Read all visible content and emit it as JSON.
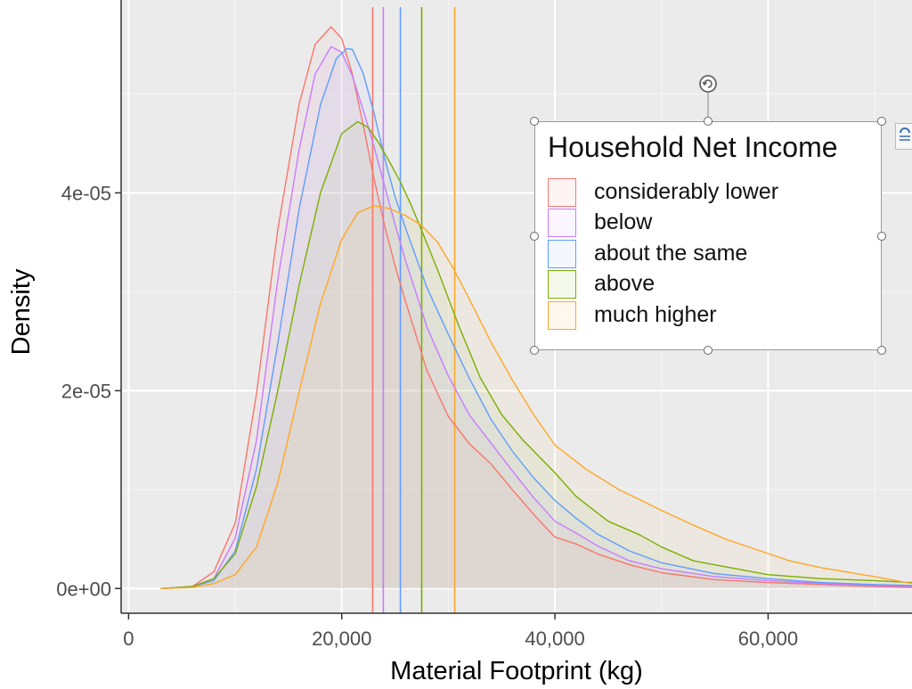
{
  "chart_data": {
    "type": "area",
    "xlabel": "Material Footprint (kg)",
    "ylabel": "Density",
    "xlim": [
      -700,
      73500
    ],
    "ylim": [
      -2.5e-06,
      5.95e-05
    ],
    "x_ticks": [
      0,
      20000,
      40000,
      60000
    ],
    "x_tick_labels": [
      "0",
      "20,000",
      "40,000",
      "60,000"
    ],
    "y_ticks": [
      0,
      2e-05,
      4e-05
    ],
    "y_tick_labels": [
      "0e+00",
      "2e-05",
      "4e-05"
    ],
    "grid": true,
    "legend_position": "top-right",
    "legend_title": "Household Net Income",
    "series": [
      {
        "name": "considerably lower",
        "color": "#F8766D",
        "mean": 22900,
        "x": [
          3000,
          6000,
          8000,
          10000,
          12000,
          14000,
          16000,
          17500,
          19000,
          20000,
          21000,
          22000,
          23000,
          24000,
          25000,
          26000,
          27000,
          28000,
          30000,
          32000,
          34000,
          36000,
          38000,
          40000,
          42000,
          44000,
          47000,
          50000,
          55000,
          60000,
          65000,
          70000,
          73500
        ],
        "y": [
          0.0,
          2e-07,
          1.7e-06,
          6.6e-06,
          1.97e-05,
          3.63e-05,
          4.9e-05,
          5.5e-05,
          5.68e-05,
          5.56e-05,
          5.2e-05,
          4.69e-05,
          4.16e-05,
          3.68e-05,
          3.26e-05,
          2.9e-05,
          2.55e-05,
          2.2e-05,
          1.74e-05,
          1.46e-05,
          1.26e-05,
          1e-05,
          7.5e-06,
          5.2e-06,
          4.5e-06,
          3.5e-06,
          2.4e-06,
          1.6e-06,
          9e-07,
          6e-07,
          4e-07,
          2e-07,
          1e-07
        ]
      },
      {
        "name": "below",
        "color": "#C77CFF",
        "mean": 23900,
        "x": [
          3000,
          6000,
          8000,
          10000,
          12000,
          14000,
          16000,
          17500,
          19000,
          20000,
          21000,
          22000,
          23000,
          24000,
          25000,
          26000,
          27000,
          28000,
          30000,
          32000,
          34000,
          36000,
          38000,
          40000,
          42000,
          44000,
          47000,
          50000,
          55000,
          60000,
          65000,
          70000,
          73500
        ],
        "y": [
          0.0,
          2e-07,
          1e-06,
          5.1e-06,
          1.5e-05,
          3.12e-05,
          4.44e-05,
          5.2e-05,
          5.48e-05,
          5.42e-05,
          5.18e-05,
          4.84e-05,
          4.48e-05,
          4.08e-05,
          3.68e-05,
          3.31e-05,
          2.98e-05,
          2.64e-05,
          2.15e-05,
          1.75e-05,
          1.47e-05,
          1.19e-05,
          9.2e-06,
          6.8e-06,
          5.6e-06,
          4.3e-06,
          2.8e-06,
          2e-06,
          1.2e-06,
          8e-07,
          5e-07,
          3e-07,
          2e-07
        ]
      },
      {
        "name": "about the same",
        "color": "#619CFF",
        "mean": 25500,
        "x": [
          3000,
          6000,
          8000,
          10000,
          12000,
          14000,
          16000,
          18000,
          19500,
          20500,
          21000,
          22000,
          23000,
          24000,
          25000,
          26000,
          27000,
          28000,
          30000,
          32000,
          34000,
          36000,
          38000,
          40000,
          42000,
          44000,
          47000,
          50000,
          55000,
          60000,
          65000,
          70000,
          73500
        ],
        "y": [
          0.0,
          2e-07,
          8e-07,
          3.8e-06,
          1.21e-05,
          2.48e-05,
          3.84e-05,
          4.89e-05,
          5.36e-05,
          5.46e-05,
          5.45e-05,
          5.21e-05,
          4.82e-05,
          4.36e-05,
          3.96e-05,
          3.64e-05,
          3.34e-05,
          3.04e-05,
          2.57e-05,
          2.12e-05,
          1.71e-05,
          1.39e-05,
          1.12e-05,
          8.9e-06,
          7.1e-06,
          5.5e-06,
          3.8e-06,
          2.6e-06,
          1.5e-06,
          1e-06,
          6e-07,
          4e-07,
          3e-07
        ]
      },
      {
        "name": "above",
        "color": "#7CAE00",
        "mean": 27500,
        "x": [
          3000,
          6000,
          8000,
          10000,
          12000,
          14000,
          16000,
          18000,
          20000,
          21500,
          22500,
          23500,
          24500,
          25500,
          26500,
          27500,
          29000,
          31000,
          33000,
          35000,
          37000,
          40000,
          42000,
          45000,
          48000,
          50000,
          53000,
          57000,
          60000,
          65000,
          70000,
          73500
        ],
        "y": [
          0.0,
          2e-07,
          1e-06,
          3.5e-06,
          1.03e-05,
          2e-05,
          3.07e-05,
          4e-05,
          4.6e-05,
          4.72e-05,
          4.66e-05,
          4.5e-05,
          4.31e-05,
          4.11e-05,
          3.88e-05,
          3.62e-05,
          3.22e-05,
          2.65e-05,
          2.13e-05,
          1.76e-05,
          1.5e-05,
          1.17e-05,
          9.3e-06,
          6.8e-06,
          5.4e-06,
          4.2e-06,
          2.8e-06,
          2e-06,
          1.4e-06,
          1e-06,
          8e-07,
          6e-07
        ]
      },
      {
        "name": "much higher",
        "color": "#FFA726",
        "mean": 30600,
        "x": [
          3000,
          6000,
          8000,
          10000,
          12000,
          14000,
          16000,
          18000,
          20000,
          21500,
          23000,
          24500,
          26000,
          27500,
          29000,
          30500,
          32000,
          34000,
          36000,
          38000,
          40000,
          43000,
          46000,
          50000,
          53000,
          56000,
          59000,
          62000,
          65000,
          70000,
          73500
        ],
        "y": [
          0.0,
          1e-07,
          5e-07,
          1.4e-06,
          4.2e-06,
          1.07e-05,
          1.99e-05,
          2.88e-05,
          3.53e-05,
          3.8e-05,
          3.87e-05,
          3.84e-05,
          3.77e-05,
          3.67e-05,
          3.5e-05,
          3.23e-05,
          2.92e-05,
          2.49e-05,
          2.11e-05,
          1.76e-05,
          1.45e-05,
          1.2e-05,
          1e-05,
          7.9e-06,
          6.4e-06,
          5e-06,
          3.9e-06,
          2.8e-06,
          2.1e-06,
          1.2e-06,
          5e-07
        ]
      }
    ]
  },
  "legend": {
    "title": "Household Net Income",
    "items": [
      {
        "label": "considerably lower",
        "color": "#F8766D"
      },
      {
        "label": "below",
        "color": "#C77CFF"
      },
      {
        "label": "about the same",
        "color": "#619CFF"
      },
      {
        "label": "above",
        "color": "#7CAE00"
      },
      {
        "label": "much higher",
        "color": "#FFA726"
      }
    ]
  },
  "ui": {
    "rotate_icon": "rotate-handle-icon",
    "layout_icon": "layout-options-icon"
  }
}
